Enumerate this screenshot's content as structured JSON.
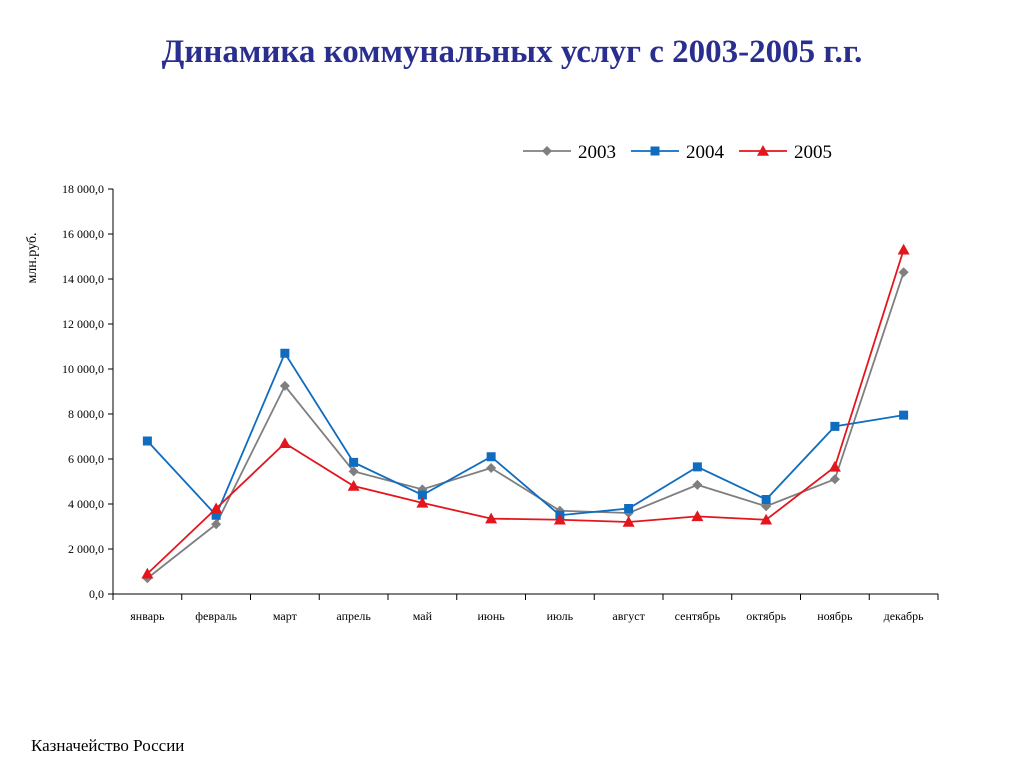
{
  "title": "Динамика коммунальных услуг с 2003-2005 г.г.",
  "footer": "Казначейство России",
  "colors": {
    "title": "#2a2f8f",
    "series_2003": "#7f7f7f",
    "series_2004": "#0f6cbf",
    "series_2005": "#e3161e"
  },
  "chart_data": {
    "type": "line",
    "title": "",
    "xlabel": "",
    "ylabel": "млн.руб.",
    "ylim": [
      0,
      18000
    ],
    "y_ticks": [
      0,
      2000,
      4000,
      6000,
      8000,
      10000,
      12000,
      14000,
      16000,
      18000
    ],
    "y_tick_labels": [
      "0,0",
      "2 000,0",
      "4 000,0",
      "6 000,0",
      "8 000,0",
      "10 000,0",
      "12 000,0",
      "14 000,0",
      "16 000,0",
      "18 000,0"
    ],
    "categories": [
      "январь",
      "февраль",
      "март",
      "апрель",
      "май",
      "июнь",
      "июль",
      "август",
      "сентябрь",
      "октябрь",
      "ноябрь",
      "декабрь"
    ],
    "legend_position": "top-right",
    "grid": false,
    "series": [
      {
        "name": "2003",
        "marker": "diamond",
        "color": "#7f7f7f",
        "values": [
          700,
          3100,
          9250,
          5450,
          4650,
          5600,
          3700,
          3600,
          4850,
          3900,
          5100,
          14300
        ]
      },
      {
        "name": "2004",
        "marker": "square",
        "color": "#0f6cbf",
        "values": [
          6800,
          3500,
          10700,
          5850,
          4400,
          6100,
          3500,
          3800,
          5650,
          4200,
          7450,
          7950
        ]
      },
      {
        "name": "2005",
        "marker": "triangle",
        "color": "#e3161e",
        "values": [
          900,
          3800,
          6700,
          4800,
          4050,
          3350,
          3300,
          3200,
          3450,
          3300,
          5650,
          15300
        ]
      }
    ]
  }
}
